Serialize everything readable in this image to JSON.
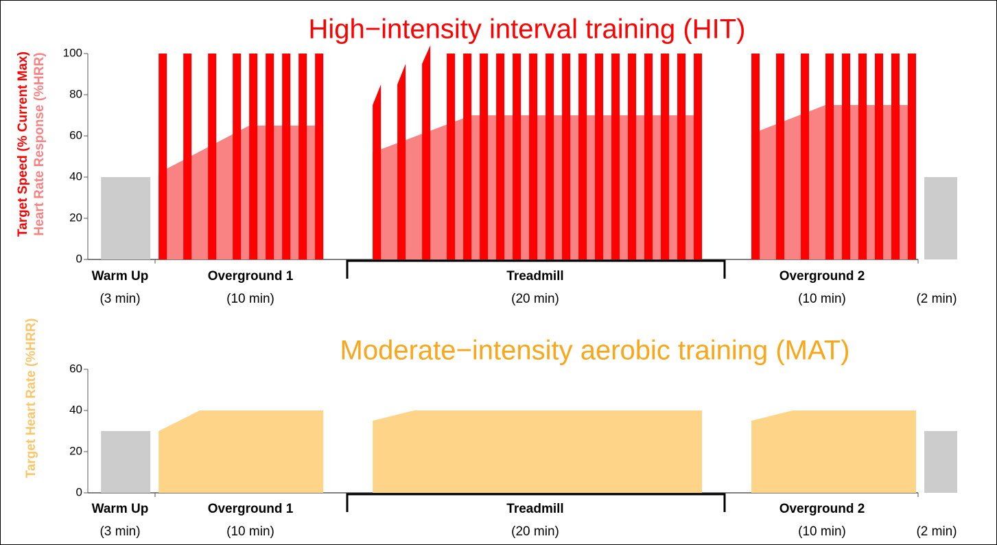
{
  "chart_data": [
    {
      "type": "bar",
      "title": "High−intensity interval training (HIT)",
      "title_color": "#ff0000",
      "ylabel": "Target Speed (% Current Max)",
      "ylabel_color": "#ff0000",
      "ylabel2": "Heart Rate Response (%HRR)",
      "ylabel2_color": "#f98282",
      "xlim": [
        -0.8,
        52
      ],
      "ylim": [
        0,
        100
      ],
      "yticks": [
        0,
        20,
        40,
        60,
        80,
        100
      ],
      "segments": [
        {
          "label": "Warm Up",
          "duration": "(3 min)"
        },
        {
          "label": "Overground 1",
          "duration": "(10 min)"
        },
        {
          "label": "Treadmill",
          "duration": "(20 min)"
        },
        {
          "label": "Overground 2",
          "duration": "(10 min)"
        },
        {
          "duration": "(2 min)"
        }
      ],
      "rest": {
        "color": "#cccccc",
        "x": [
          0,
          50
        ],
        "width": [
          3,
          2
        ],
        "values": [
          40,
          40
        ]
      },
      "area": {
        "color": "#f98282",
        "x": [
          3.5,
          9,
          13.5,
          null,
          16.5,
          22.5,
          36.5,
          null,
          39.5,
          44,
          49.5
        ],
        "values": [
          42,
          65,
          65,
          null,
          52,
          70,
          70,
          null,
          61,
          75,
          75
        ]
      },
      "speed": {
        "color": "#ff0000",
        "width": 0.5,
        "x": [
          3.5,
          5,
          6.5,
          8,
          9,
          10,
          11,
          12,
          13,
          16.5,
          18,
          19.5,
          21,
          22,
          23,
          24,
          25,
          26,
          27,
          28,
          29,
          30,
          31,
          32,
          33,
          34,
          35,
          36,
          39.5,
          41,
          42.5,
          44,
          45,
          46,
          47,
          48,
          49
        ],
        "values": [
          100,
          100,
          100,
          100,
          100,
          100,
          100,
          100,
          100,
          75,
          85,
          95,
          100,
          100,
          100,
          100,
          100,
          100,
          100,
          100,
          100,
          100,
          100,
          100,
          100,
          100,
          100,
          100,
          100,
          100,
          100,
          100,
          100,
          100,
          100,
          100,
          100
        ],
        "end_values": [
          100,
          100,
          100,
          100,
          100,
          100,
          100,
          100,
          100,
          85,
          95,
          104,
          100,
          100,
          100,
          100,
          100,
          100,
          100,
          100,
          100,
          100,
          100,
          100,
          100,
          100,
          100,
          100,
          100,
          100,
          100,
          100,
          100,
          100,
          100,
          100,
          100
        ]
      }
    },
    {
      "type": "area",
      "title": "Moderate−intensity aerobic training (MAT)",
      "title_color": "#f9a61a",
      "ylabel": "Target Heart Rate (%HRR)",
      "ylabel_color": "#fbc56a",
      "xlim": [
        -0.8,
        52
      ],
      "ylim": [
        0,
        60
      ],
      "yticks": [
        0,
        20,
        40,
        60
      ],
      "segments": [
        {
          "label": "Warm Up",
          "duration": "(3 min)"
        },
        {
          "label": "Overground 1",
          "duration": "(10 min)"
        },
        {
          "label": "Treadmill",
          "duration": "(20 min)"
        },
        {
          "label": "Overground 2",
          "duration": "(10 min)"
        },
        {
          "duration": "(2 min)"
        }
      ],
      "rest": {
        "color": "#cccccc",
        "x": [
          0,
          50
        ],
        "width": [
          3,
          2
        ],
        "values": [
          30,
          30
        ]
      },
      "area": {
        "color": "#fdd488",
        "x": [
          3.5,
          6,
          13.5,
          null,
          16.5,
          19,
          36.5,
          null,
          39.5,
          42,
          49.5
        ],
        "values": [
          30,
          40,
          40,
          null,
          35,
          40,
          40,
          null,
          35,
          40,
          40
        ]
      }
    }
  ]
}
